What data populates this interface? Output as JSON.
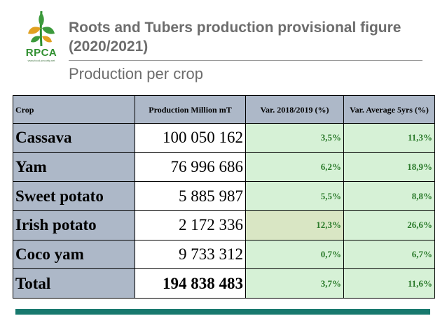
{
  "logo": {
    "text": "RPCA",
    "url": "www.food-security.net"
  },
  "header": {
    "title": "Roots and Tubers production provisional figure (2020/2021)",
    "subtitle": "Production per crop"
  },
  "table": {
    "headers": {
      "crop": "Crop",
      "production": "Production Million mT",
      "var_2018": "Var. 2018/2019 (%)",
      "var_avg": "Var. Average 5yrs (%)"
    },
    "rows": [
      {
        "crop": "Cassava",
        "production": "100 050 162",
        "var_2018": "3,5%",
        "var_avg": "11,3%"
      },
      {
        "crop": "Yam",
        "production": "76 996 686",
        "var_2018": "6,2%",
        "var_avg": "18,9%"
      },
      {
        "crop": "Sweet potato",
        "production": "5 885 987",
        "var_2018": "5,5%",
        "var_avg": "8,8%"
      },
      {
        "crop": "Irish potato",
        "production": "2 172 336",
        "var_2018": "12,3%",
        "var_avg": "26,6%"
      },
      {
        "crop": "Coco yam",
        "production": "9 733 312",
        "var_2018": "0,7%",
        "var_avg": "6,7%"
      },
      {
        "crop": "Total",
        "production": "194 838 483",
        "var_2018": "3,7%",
        "var_avg": "11,6%"
      }
    ]
  },
  "colors": {
    "header_bg": "#adb8c8",
    "green_cell": "#d6f1d6",
    "highlight_cell": "#d9e6c4",
    "green_text": "#2a7a2a",
    "footer_bar": "#18796e"
  }
}
